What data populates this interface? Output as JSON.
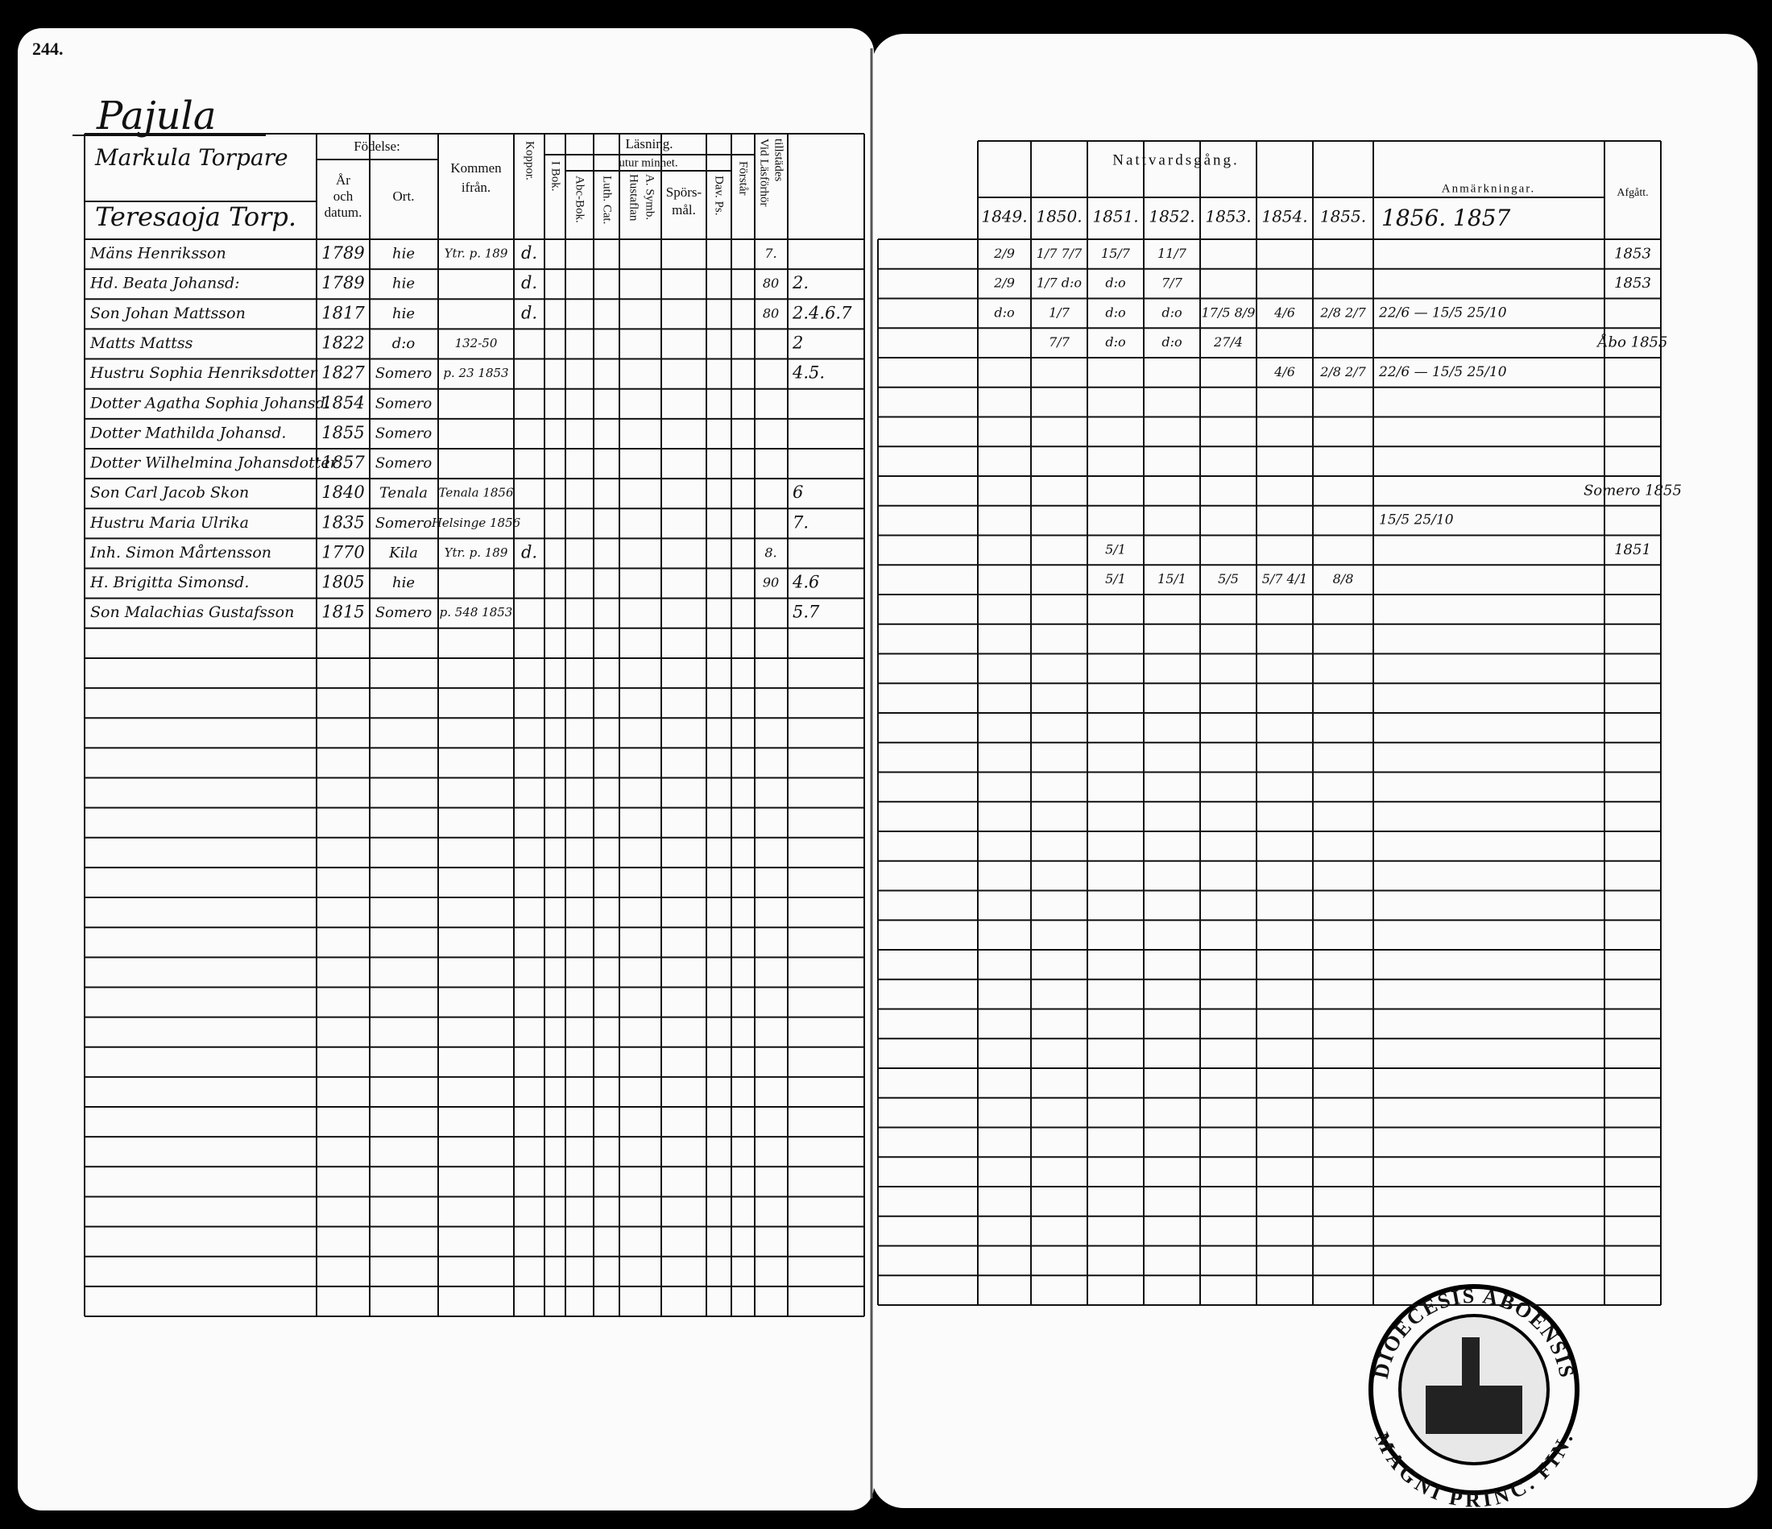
{
  "page_number": "244.",
  "heading": "Pajula",
  "household": "Markula Torpare",
  "household_sub": "Teresaoja Torp.",
  "left_headers": {
    "birth": "Födelse:",
    "birth_year": [
      "År",
      "och",
      "datum."
    ],
    "birth_place": "Ort.",
    "came_from": [
      "Kommen",
      "ifrån."
    ],
    "vaccination": "Koppor.",
    "reading": "Läsning.",
    "by_heart": "utur minnet.",
    "book": "I Bok.",
    "abc": "Abc-Bok.",
    "catechism": "Luth. Cat.",
    "table": [
      "Hustaflan",
      "A. Symb."
    ],
    "questions": [
      "Spörs-",
      "mål."
    ],
    "psalms": "Dav. Ps.",
    "understands": "Förstår",
    "exam": [
      "Vid Läsförhör",
      "tillstädes"
    ]
  },
  "right_headers": {
    "communion": "Nattvardsgång.",
    "years": [
      "1849.",
      "1850.",
      "1851.",
      "1852.",
      "1853.",
      "1854.",
      "1855."
    ],
    "remarks": "Anmärkningar.",
    "remarks_years": "1856. 1857",
    "exit": "Afgått."
  },
  "rows": [
    {
      "name": "Mäns Henriksson",
      "born": "1789",
      "place": "hie",
      "from": "Ytr. p. 189",
      "vacc": "d.",
      "exam": "7.",
      "communion": [
        "2/9",
        "1/7 7/7",
        "15/7",
        "11/7",
        null,
        null,
        null
      ],
      "exit": "1853"
    },
    {
      "name": "Hd. Beata Johansd:",
      "born": "1789",
      "place": "hie",
      "vacc": "d.",
      "exam": "80",
      "notes": "2.",
      "communion": [
        "2/9",
        "1/7 d:o",
        "d:o",
        "7/7",
        null,
        null,
        null
      ],
      "exit": "1853"
    },
    {
      "name": "Son Johan Mattsson",
      "born": "1817",
      "place": "hie",
      "vacc": "d.",
      "exam": "80",
      "notes": "2.4.6.7",
      "communion": [
        "d:o",
        "1/7",
        "d:o",
        "d:o",
        "17/5 8/9",
        "4/6",
        "2/8 2/7"
      ],
      "remarks": "22/6 — 15/5 25/10"
    },
    {
      "name": "Matts Mattss",
      "born": "1822",
      "place": "d:o",
      "from": "132-50",
      "notes": "2",
      "communion": [
        null,
        "7/7",
        "d:o",
        "d:o",
        "27/4",
        null,
        null
      ],
      "exit": "Åbo 1855"
    },
    {
      "name": "Hustru Sophia Henriksdotter",
      "born": "1827",
      "place": "Somero",
      "from": "p. 23 1853",
      "notes": "4.5.",
      "communion": [
        null,
        null,
        null,
        null,
        null,
        "4/6",
        "2/8 2/7"
      ],
      "remarks": "22/6 — 15/5 25/10"
    },
    {
      "name": "Dotter Agatha Sophia Johansd.",
      "born": "1854",
      "place": "Somero"
    },
    {
      "name": "Dotter Mathilda Johansd.",
      "born": "1855",
      "place": "Somero"
    },
    {
      "name": "Dotter Wilhelmina Johansdotter",
      "born": "1857",
      "place": "Somero"
    },
    {
      "name": "Son Carl Jacob Skon",
      "born": "1840",
      "place": "Tenala",
      "from": "Tenala 1856",
      "notes": "6",
      "exit": "Somero 1855"
    },
    {
      "name": "Hustru Maria Ulrika",
      "born": "1835",
      "place": "Somero",
      "from": "Helsinge 1856",
      "notes": "7.",
      "remarks": "15/5 25/10"
    },
    {
      "name": "Inh. Simon Mårtensson",
      "born": "1770",
      "place": "Kila",
      "from": "Ytr. p. 189",
      "vacc": "d.",
      "exam": "8.",
      "communion": [
        null,
        null,
        "5/1",
        null,
        null,
        null,
        null
      ],
      "exit": "1851"
    },
    {
      "name": "H. Brigitta Simonsd.",
      "born": "1805",
      "place": "hie",
      "exam": "90",
      "notes": "4.6",
      "communion": [
        null,
        null,
        "5/1",
        "15/1",
        "5/5",
        "5/7 4/1",
        "8/8"
      ]
    },
    {
      "name": "Son Malachias Gustafsson",
      "born": "1815",
      "place": "Somero",
      "from": "p. 548 1853",
      "notes": "5.7"
    }
  ],
  "stamp": [
    "DIOECESIS ABOENSIS",
    "MAGNI PRINC. FIN."
  ]
}
